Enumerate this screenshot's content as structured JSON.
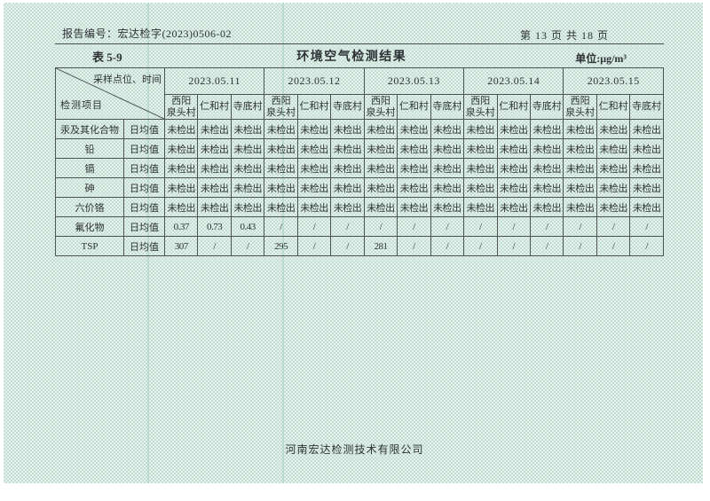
{
  "header": {
    "report_no": "报告编号：宏达检字(2023)0506-02",
    "page_indicator": "第 13 页 共 18 页"
  },
  "table": {
    "tag": "表 5-9",
    "title": "环境空气检测结果",
    "unit": "单位:μg/m³",
    "corner": {
      "top_label": "采样点位、时间",
      "bottom_label": "检测项目"
    },
    "dates": [
      "2023.05.11",
      "2023.05.12",
      "2023.05.13",
      "2023.05.14",
      "2023.05.15"
    ],
    "sites": [
      "西阳\n泉头村",
      "仁和村",
      "寺底村"
    ],
    "rows": [
      {
        "item": "汞及其化合物",
        "stat": "日均值",
        "values": [
          "未检出",
          "未检出",
          "未检出",
          "未检出",
          "未检出",
          "未检出",
          "未检出",
          "未检出",
          "未检出",
          "未检出",
          "未检出",
          "未检出",
          "未检出",
          "未检出",
          "未检出"
        ]
      },
      {
        "item": "铅",
        "stat": "日均值",
        "values": [
          "未检出",
          "未检出",
          "未检出",
          "未检出",
          "未检出",
          "未检出",
          "未检出",
          "未检出",
          "未检出",
          "未检出",
          "未检出",
          "未检出",
          "未检出",
          "未检出",
          "未检出"
        ]
      },
      {
        "item": "镉",
        "stat": "日均值",
        "values": [
          "未检出",
          "未检出",
          "未检出",
          "未检出",
          "未检出",
          "未检出",
          "未检出",
          "未检出",
          "未检出",
          "未检出",
          "未检出",
          "未检出",
          "未检出",
          "未检出",
          "未检出"
        ]
      },
      {
        "item": "砷",
        "stat": "日均值",
        "values": [
          "未检出",
          "未检出",
          "未检出",
          "未检出",
          "未检出",
          "未检出",
          "未检出",
          "未检出",
          "未检出",
          "未检出",
          "未检出",
          "未检出",
          "未检出",
          "未检出",
          "未检出"
        ]
      },
      {
        "item": "六价铬",
        "stat": "日均值",
        "values": [
          "未检出",
          "未检出",
          "未检出",
          "未检出",
          "未检出",
          "未检出",
          "未检出",
          "未检出",
          "未检出",
          "未检出",
          "未检出",
          "未检出",
          "未检出",
          "未检出",
          "未检出"
        ]
      },
      {
        "item": "氟化物",
        "stat": "日均值",
        "values": [
          "0.37",
          "0.73",
          "0.43",
          "/",
          "/",
          "/",
          "/",
          "/",
          "/",
          "/",
          "/",
          "/",
          "/",
          "/",
          "/"
        ]
      },
      {
        "item": "TSP",
        "stat": "日均值",
        "values": [
          "307",
          "/",
          "/",
          "295",
          "/",
          "/",
          "281",
          "/",
          "/",
          "/",
          "/",
          "/",
          "/",
          "/",
          "/"
        ]
      }
    ]
  },
  "footer": {
    "company": "河南宏达检测技术有限公司"
  },
  "colors": {
    "paper_green": "#dcebe4",
    "ink": "#2e3236",
    "table_line": "#4d5254"
  }
}
